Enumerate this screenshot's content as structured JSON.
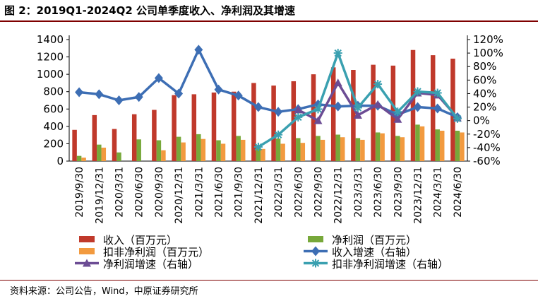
{
  "header": {
    "title": "图 2：2019Q1-2024Q2 公司单季度收入、净利润及其增速"
  },
  "source": {
    "text": "资料来源：公司公告，Wind，中原证券研究所"
  },
  "colors": {
    "revenue": "#c0392b",
    "net_profit": "#77a83a",
    "deducted_net_profit": "#f29a3f",
    "revenue_growth": "#3d6eb4",
    "net_profit_growth": "#6c4c94",
    "deducted_growth": "#3aa0b0",
    "title_rule": "#7f0000"
  },
  "chart_data": {
    "type": "bar",
    "categories": [
      "2019/9/30",
      "2019/12/31",
      "2020/3/31",
      "2020/6/30",
      "2020/9/30",
      "2020/12/31",
      "2021/3/31",
      "2021/6/30",
      "2021/9/30",
      "2021/12/31",
      "2022/3/31",
      "2022/6/30",
      "2022/9/30",
      "2022/12/31",
      "2023/3/31",
      "2023/6/30",
      "2023/9/30",
      "2023/12/31",
      "2024/3/31",
      "2024/6/30"
    ],
    "y_left": {
      "ticks": [
        "0",
        "200",
        "400",
        "600",
        "800",
        "1000",
        "1200",
        "1400"
      ],
      "min": 0,
      "max": 1400
    },
    "y_right": {
      "ticks": [
        "-60%",
        "-40%",
        "-20%",
        "0%",
        "20%",
        "40%",
        "60%",
        "80%",
        "100%",
        "120%"
      ],
      "min": -0.6,
      "max": 1.2
    },
    "bar_series": [
      {
        "name": "收入（百万元）",
        "values": [
          360,
          530,
          370,
          540,
          590,
          760,
          770,
          790,
          800,
          900,
          870,
          920,
          1000,
          1080,
          1050,
          1110,
          1100,
          1280,
          1220,
          1180
        ]
      },
      {
        "name": "净利润（百万元）",
        "values": [
          60,
          190,
          100,
          250,
          240,
          280,
          310,
          240,
          290,
          160,
          260,
          265,
          290,
          305,
          265,
          330,
          290,
          420,
          365,
          350
        ]
      },
      {
        "name": "扣非净利润（百万元）",
        "values": [
          40,
          155,
          null,
          null,
          125,
          215,
          255,
          200,
          245,
          140,
          200,
          210,
          245,
          275,
          245,
          320,
          275,
          400,
          350,
          330
        ]
      }
    ],
    "line_series": [
      {
        "name": "收入增速（右轴）",
        "values": [
          0.42,
          0.39,
          0.3,
          0.35,
          0.63,
          0.4,
          1.05,
          0.46,
          0.37,
          0.2,
          0.13,
          0.17,
          0.24,
          0.21,
          0.22,
          0.22,
          0.09,
          0.2,
          0.18,
          0.05
        ]
      },
      {
        "name": "净利润增速（右轴）",
        "values": [
          null,
          null,
          null,
          null,
          null,
          null,
          null,
          null,
          null,
          null,
          null,
          0.16,
          0.0,
          0.56,
          0.08,
          0.24,
          0.02,
          0.41,
          0.38,
          0.04
        ]
      },
      {
        "name": "扣非净利润增速（右轴）",
        "values": [
          null,
          null,
          null,
          null,
          null,
          null,
          null,
          null,
          null,
          -0.39,
          -0.21,
          0.05,
          0.17,
          1.0,
          0.19,
          0.54,
          0.13,
          0.43,
          0.41,
          0.03
        ]
      }
    ],
    "legend": [
      {
        "label": "收入（百万元）",
        "kind": "bar",
        "series": "revenue"
      },
      {
        "label": "净利润（百万元）",
        "kind": "bar",
        "series": "net_profit"
      },
      {
        "label": "扣非净利润（百万元）",
        "kind": "bar",
        "series": "deducted_net_profit"
      },
      {
        "label": "收入增速（右轴）",
        "kind": "line-diamond",
        "series": "revenue_growth"
      },
      {
        "label": "净利润增速（右轴）",
        "kind": "line-triangle",
        "series": "net_profit_growth"
      },
      {
        "label": "扣非净利润增速（右轴）",
        "kind": "line-star",
        "series": "deducted_growth"
      }
    ],
    "grid": false,
    "legend_position": "bottom"
  }
}
